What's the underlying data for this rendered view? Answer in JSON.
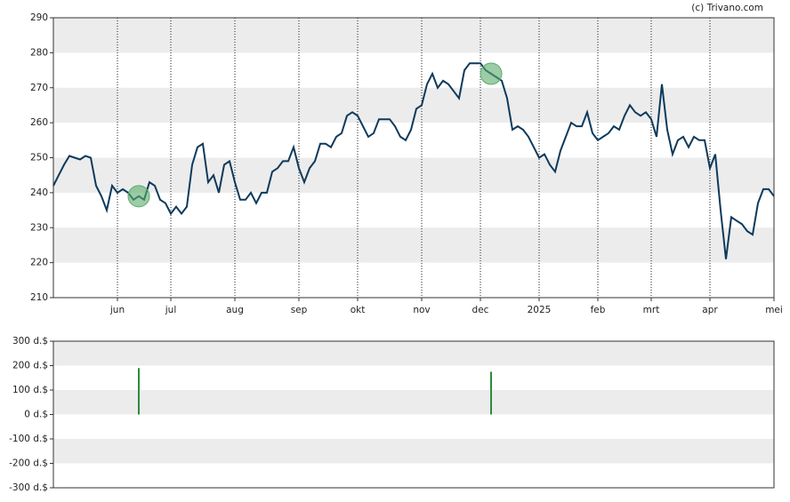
{
  "source": "(c) Trivano.com",
  "chart_data": [
    {
      "type": "line",
      "color": "#0d3a5c",
      "marker_color": "#5aab6b",
      "grid": true,
      "categories": [
        null,
        null,
        null,
        null,
        null,
        null,
        null,
        null,
        null,
        null,
        null,
        null,
        "jun",
        null,
        null,
        null,
        null,
        null,
        null,
        null,
        null,
        null,
        "jul",
        null,
        null,
        null,
        null,
        null,
        null,
        null,
        null,
        null,
        null,
        null,
        "aug",
        null,
        null,
        null,
        null,
        null,
        null,
        null,
        null,
        null,
        null,
        null,
        "sep",
        null,
        null,
        null,
        null,
        null,
        null,
        null,
        null,
        null,
        null,
        "okt",
        null,
        null,
        null,
        null,
        null,
        null,
        null,
        null,
        null,
        null,
        null,
        "nov",
        null,
        null,
        null,
        null,
        null,
        null,
        null,
        null,
        null,
        null,
        "dec",
        null,
        null,
        null,
        null,
        null,
        null,
        null,
        null,
        null,
        null,
        "2025",
        null,
        null,
        null,
        null,
        null,
        null,
        null,
        null,
        null,
        null,
        "feb",
        null,
        null,
        null,
        null,
        null,
        null,
        null,
        null,
        null,
        "mrt",
        null,
        null,
        null,
        null,
        null,
        null,
        null,
        null,
        null,
        null,
        "apr",
        null,
        null,
        null,
        null,
        null,
        null,
        null,
        null,
        null,
        null,
        null,
        "mei"
      ],
      "values": [
        242,
        245,
        248,
        250.5,
        250,
        249.5,
        250.5,
        250,
        242,
        239,
        235,
        242,
        240,
        241,
        240,
        238,
        239,
        238,
        243,
        242,
        238,
        237,
        234,
        236,
        234,
        236,
        248,
        253,
        254,
        243,
        245,
        240,
        248,
        249,
        243,
        238,
        238,
        240,
        237,
        240,
        240,
        246,
        247,
        249,
        249,
        253,
        247,
        243,
        247,
        249,
        254,
        254,
        253,
        256,
        257,
        262,
        263,
        262,
        259,
        256,
        257,
        261,
        261,
        261,
        259,
        256,
        255,
        258,
        264,
        265,
        271,
        274,
        270,
        272,
        271,
        269,
        267,
        275,
        277,
        277,
        277,
        275,
        274,
        273,
        272,
        267,
        258,
        259,
        258,
        256,
        253,
        250,
        251,
        248,
        246,
        252,
        256,
        260,
        259,
        259,
        263,
        257,
        255,
        256,
        257,
        259,
        258,
        262,
        265,
        263,
        262,
        263,
        261,
        256,
        271,
        258,
        251,
        255,
        256,
        253,
        256,
        255,
        255,
        247,
        251,
        235,
        221,
        233,
        232,
        231,
        229,
        228,
        237,
        241,
        241,
        239
      ],
      "ylim": [
        210,
        290
      ],
      "yticks": [
        210,
        220,
        230,
        240,
        250,
        260,
        270,
        280,
        290
      ]
    },
    {
      "type": "bar",
      "color": "#2e8b3a",
      "grid": true,
      "values": [
        null,
        null,
        null,
        null,
        null,
        null,
        null,
        null,
        null,
        null,
        null,
        null,
        null,
        null,
        null,
        null,
        190,
        null,
        null,
        null,
        null,
        null,
        null,
        null,
        null,
        null,
        null,
        null,
        null,
        null,
        null,
        null,
        null,
        null,
        null,
        null,
        null,
        null,
        null,
        null,
        null,
        null,
        null,
        null,
        null,
        null,
        null,
        null,
        null,
        null,
        null,
        null,
        null,
        null,
        null,
        null,
        null,
        null,
        null,
        null,
        null,
        null,
        null,
        null,
        null,
        null,
        null,
        null,
        null,
        null,
        null,
        null,
        null,
        null,
        null,
        null,
        null,
        null,
        null,
        null,
        null,
        null,
        175,
        null,
        null,
        null,
        null,
        null,
        null,
        null,
        null,
        null,
        null,
        null,
        null,
        null,
        null,
        null,
        null,
        null,
        null,
        null,
        null,
        null,
        null,
        null,
        null,
        null,
        null,
        null,
        null,
        null,
        null,
        null,
        null,
        null,
        null,
        null,
        null,
        null,
        null,
        null,
        null,
        null,
        null,
        null,
        null,
        null,
        null,
        null,
        null,
        null,
        null,
        null,
        null,
        null
      ],
      "ylim": [
        -300,
        300
      ],
      "yticks": [
        {
          "value": -300,
          "label": "-300 d.$"
        },
        {
          "value": -200,
          "label": "-200 d.$"
        },
        {
          "value": -100,
          "label": "-100 d.$"
        },
        {
          "value": 0,
          "label": "0 d.$"
        },
        {
          "value": 100,
          "label": "100 d.$"
        },
        {
          "value": 200,
          "label": "200 d.$"
        },
        {
          "value": 300,
          "label": "300 d.$"
        }
      ]
    }
  ]
}
